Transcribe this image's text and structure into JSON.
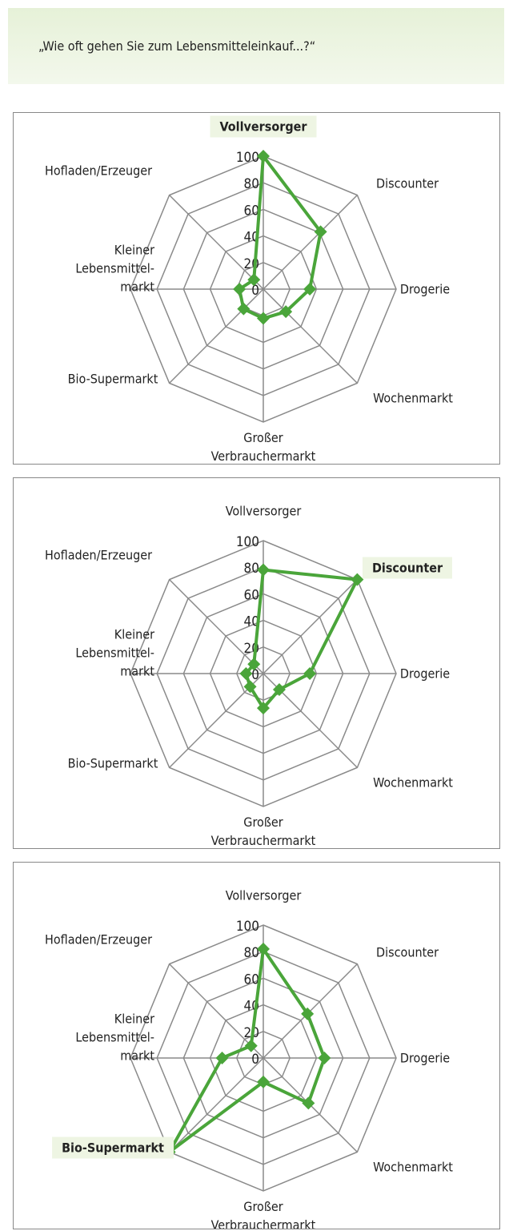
{
  "question": "„Wie oft gehen Sie zum Lebensmitteleinkauf...?“",
  "chart_data": [
    {
      "type": "radar",
      "categories": [
        "Vollversorger",
        "Discounter",
        "Drogerie",
        "Wochenmarkt",
        "Großer\nVerbrauchermarkt",
        "Bio-Supermarkt",
        "Kleiner\nLebensmittel-\nmarkt",
        "Hofladen/Erzeuger"
      ],
      "values": [
        100,
        61,
        35,
        24,
        22,
        21,
        18,
        10
      ],
      "ylim": [
        0,
        100
      ],
      "yticks": [
        0,
        20,
        40,
        60,
        80,
        100
      ],
      "color": "#4aa53a",
      "highlight": 0
    },
    {
      "type": "radar",
      "categories": [
        "Vollversorger",
        "Discounter",
        "Drogerie",
        "Wochenmarkt",
        "Großer\nVerbrauchermarkt",
        "Bio-Supermarkt",
        "Kleiner\nLebensmittel-\nmarkt",
        "Hofladen/Erzeuger"
      ],
      "values": [
        78,
        100,
        35,
        17,
        26,
        14,
        13,
        10
      ],
      "ylim": [
        0,
        100
      ],
      "yticks": [
        0,
        20,
        40,
        60,
        80,
        100
      ],
      "color": "#4aa53a",
      "highlight": 1
    },
    {
      "type": "radar",
      "categories": [
        "Vollversorger",
        "Discounter",
        "Drogerie",
        "Wochenmarkt",
        "Großer\nVerbrauchermarkt",
        "Bio-Supermarkt",
        "Kleiner\nLebensmittel-\nmarkt",
        "Hofladen/Erzeuger"
      ],
      "values": [
        82,
        47,
        46,
        48,
        18,
        100,
        31,
        13
      ],
      "ylim": [
        0,
        100
      ],
      "yticks": [
        0,
        20,
        40,
        60,
        80,
        100
      ],
      "color": "#4aa53a",
      "highlight": 5
    }
  ]
}
